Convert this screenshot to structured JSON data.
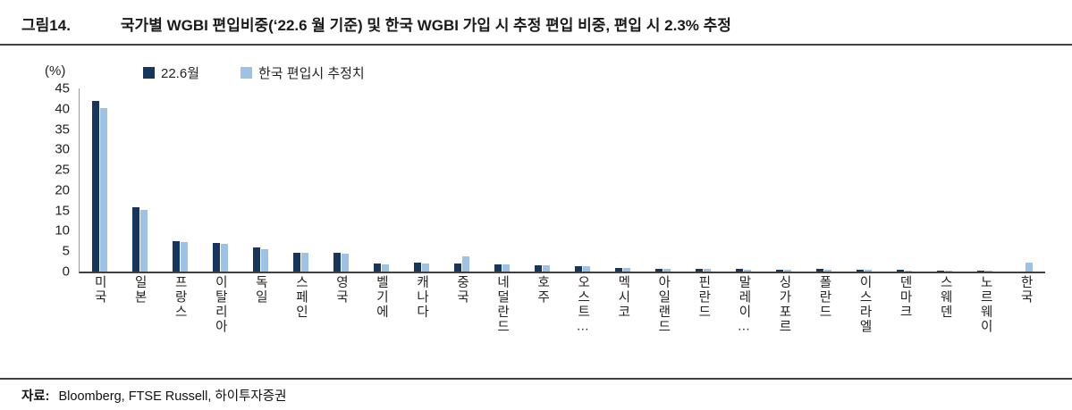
{
  "header": {
    "figure_label": "그림14.",
    "title": "국가별 WGBI 편입비중(‘22.6 월 기준) 및 한국 WGBI 가입 시 추정 편입 비중, 편입 시 2.3% 추정"
  },
  "footer": {
    "source_label": "자료:",
    "source_text": "Bloomberg, FTSE Russell, 하이투자증권"
  },
  "chart_data": {
    "type": "bar",
    "title": "",
    "xlabel": "",
    "ylabel": "(%)",
    "ylim": [
      0,
      45
    ],
    "y_ticks": [
      0,
      5,
      10,
      15,
      20,
      25,
      30,
      35,
      40,
      45
    ],
    "grid": false,
    "legend_position": "top-left",
    "categories": [
      "미국",
      "일본",
      "프랑스",
      "이탈리아",
      "독일",
      "스페인",
      "영국",
      "벨기에",
      "캐나다",
      "중국",
      "네덜란드",
      "호주",
      "오스트…",
      "멕시코",
      "아일랜드",
      "핀란드",
      "말레이…",
      "싱가포르",
      "폴란드",
      "이스라엘",
      "덴마크",
      "스웨덴",
      "노르웨이",
      "한국"
    ],
    "series": [
      {
        "name": "22.6월",
        "color": "#17365D",
        "values": [
          42.0,
          15.9,
          7.5,
          7.0,
          6.0,
          4.7,
          4.7,
          1.9,
          2.1,
          2.0,
          1.8,
          1.6,
          1.3,
          0.9,
          0.7,
          0.6,
          0.6,
          0.5,
          0.6,
          0.4,
          0.4,
          0.3,
          0.3,
          0.0
        ]
      },
      {
        "name": "한국 편입시 추정치",
        "color": "#9CC3E5",
        "values": [
          40.2,
          15.1,
          7.3,
          6.8,
          5.5,
          4.6,
          4.5,
          1.8,
          2.0,
          3.8,
          1.7,
          1.5,
          1.3,
          0.9,
          0.7,
          0.6,
          0.5,
          0.5,
          0.5,
          0.4,
          0.3,
          0.3,
          0.2,
          2.3
        ]
      }
    ]
  }
}
